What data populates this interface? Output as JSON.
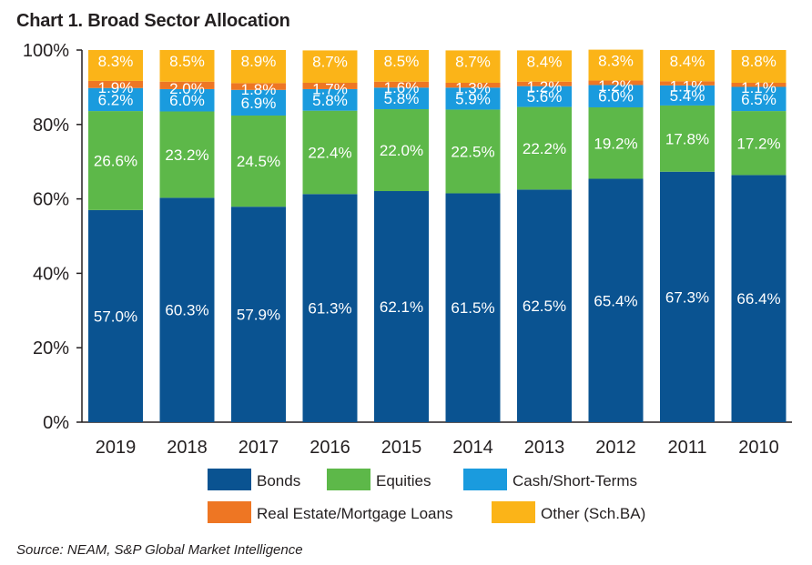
{
  "title": "Chart 1. Broad Sector Allocation",
  "source": "Source: NEAM, S&P Global Market Intelligence",
  "chart_data": {
    "type": "bar",
    "stacked": true,
    "title": "Chart 1. Broad Sector Allocation",
    "xlabel": "",
    "ylabel": "",
    "ylim": [
      0,
      100
    ],
    "yticks": [
      "0%",
      "20%",
      "40%",
      "60%",
      "80%",
      "100%"
    ],
    "categories": [
      "2019",
      "2018",
      "2017",
      "2016",
      "2015",
      "2014",
      "2013",
      "2012",
      "2011",
      "2010"
    ],
    "legend_position": "bottom",
    "series": [
      {
        "name": "Bonds",
        "color": "#0a5391",
        "values": [
          57.0,
          60.3,
          57.9,
          61.3,
          62.1,
          61.5,
          62.5,
          65.4,
          67.3,
          66.4
        ],
        "labels": [
          "57.0%",
          "60.3%",
          "57.9%",
          "61.3%",
          "62.1%",
          "61.5%",
          "62.5%",
          "65.4%",
          "67.3%",
          "66.4%"
        ]
      },
      {
        "name": "Equities",
        "color": "#5db849",
        "values": [
          26.6,
          23.2,
          24.5,
          22.4,
          22.0,
          22.5,
          22.2,
          19.2,
          17.8,
          17.2
        ],
        "labels": [
          "26.6%",
          "23.2%",
          "24.5%",
          "22.4%",
          "22.0%",
          "22.5%",
          "22.2%",
          "19.2%",
          "17.8%",
          "17.2%"
        ]
      },
      {
        "name": "Cash/Short-Terms",
        "color": "#1a9bde",
        "values": [
          6.2,
          6.0,
          6.9,
          5.8,
          5.8,
          5.9,
          5.6,
          6.0,
          5.4,
          6.5
        ],
        "labels": [
          "6.2%",
          "6.0%",
          "6.9%",
          "5.8%",
          "5.8%",
          "5.9%",
          "5.6%",
          "6.0%",
          "5.4%",
          "6.5%"
        ]
      },
      {
        "name": "Real Estate/Mortgage Loans",
        "color": "#ee7623",
        "values": [
          1.9,
          2.0,
          1.8,
          1.7,
          1.6,
          1.3,
          1.2,
          1.2,
          1.1,
          1.1
        ],
        "labels": [
          "1.9%",
          "2.0%",
          "1.8%",
          "1.7%",
          "1.6%",
          "1.3%",
          "1.2%",
          "1.2%",
          "1.1%",
          "1.1%"
        ]
      },
      {
        "name": "Other (Sch.BA)",
        "color": "#fbb418",
        "values": [
          8.3,
          8.5,
          8.9,
          8.7,
          8.5,
          8.7,
          8.4,
          8.3,
          8.4,
          8.8
        ],
        "labels": [
          "8.3%",
          "8.5%",
          "8.9%",
          "8.7%",
          "8.5%",
          "8.7%",
          "8.4%",
          "8.3%",
          "8.4%",
          "8.8%"
        ]
      }
    ]
  }
}
